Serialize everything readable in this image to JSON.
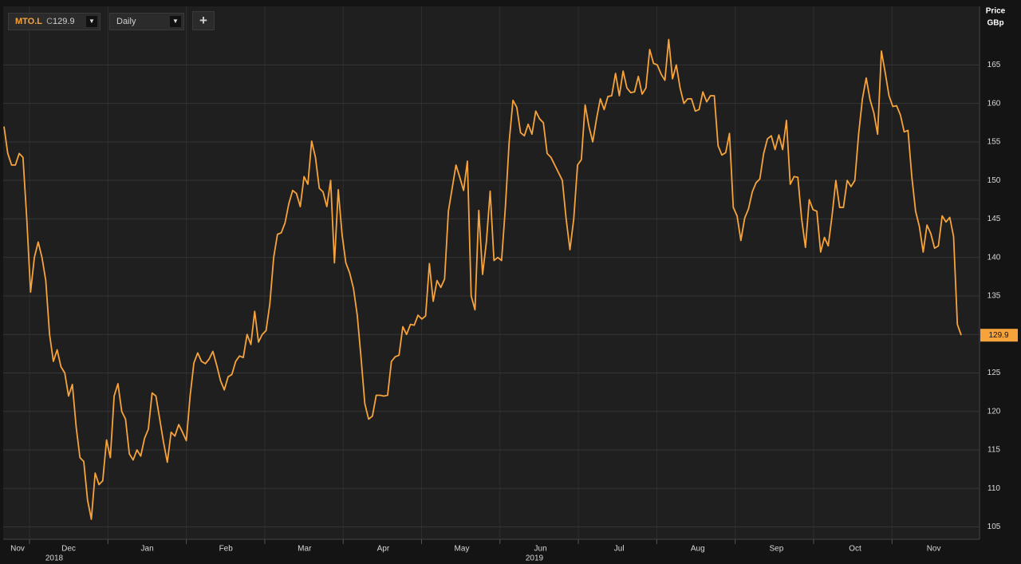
{
  "chart_data": {
    "type": "line",
    "ticker": "MTO.L",
    "last_label": "C",
    "last_value": 129.9,
    "interval": "Daily",
    "add_button": "+",
    "y_label": "Price",
    "y_unit": "GBp",
    "month_labels": [
      "Nov",
      "Dec",
      "Jan",
      "Feb",
      "Mar",
      "Apr",
      "May",
      "Jun",
      "Jul",
      "Aug",
      "Sep",
      "Oct",
      "Nov"
    ],
    "year_labels": [
      "2018",
      "2019"
    ],
    "ylim": [
      103.4,
      172.6
    ],
    "yticks": [
      105,
      110,
      115,
      120,
      125,
      130,
      135,
      140,
      145,
      150,
      155,
      160,
      165
    ],
    "grid": true,
    "series": [
      {
        "name": "MTO.L",
        "color": "#f7a33c",
        "values": [
          157,
          153.5,
          152,
          152,
          153.5,
          153,
          145,
          135.5,
          140,
          142,
          140,
          137,
          130,
          126.5,
          128,
          125.8,
          125,
          122,
          123.5,
          118,
          114,
          113.5,
          108.5,
          106,
          112,
          110.5,
          111,
          116.3,
          114,
          122,
          123.6,
          120,
          119,
          114.5,
          113.7,
          115,
          114.2,
          116.5,
          117.7,
          122.4,
          122,
          119,
          116,
          113.4,
          117.3,
          116.8,
          118.3,
          117.3,
          116.2,
          122,
          126.3,
          127.6,
          126.5,
          126.2,
          126.8,
          127.8,
          126,
          124,
          122.8,
          124.5,
          124.8,
          126.5,
          127.2,
          127,
          130,
          128.7,
          133,
          129,
          130,
          130.5,
          134,
          140,
          143,
          143.2,
          144.5,
          147,
          148.7,
          148.3,
          146.6,
          150.5,
          149.5,
          155.1,
          153,
          149,
          148.5,
          146.6,
          150,
          139.3,
          148.8,
          143,
          139.3,
          138,
          136,
          132.5,
          127,
          121,
          119,
          119.4,
          122.1,
          122.1,
          122,
          122.1,
          126.5,
          127.1,
          127.3,
          131,
          130,
          131.3,
          131.2,
          132.5,
          132,
          132.4,
          139.2,
          134.3,
          137,
          136.1,
          137.2,
          146,
          149,
          152,
          150.4,
          148.7,
          152.5,
          135,
          133.2,
          146.1,
          137.8,
          142,
          148.6,
          139.6,
          140,
          139.6,
          146.5,
          155,
          160.4,
          159.5,
          156.2,
          155.8,
          157.3,
          156,
          159,
          158,
          157.5,
          153.5,
          153,
          152,
          151,
          150,
          145,
          141,
          145,
          152,
          152.7,
          159.8,
          157,
          155,
          158,
          160.6,
          159.2,
          160.9,
          161,
          163.9,
          161,
          164.2,
          162,
          161.4,
          161.5,
          163.5,
          161.2,
          162,
          167,
          165.2,
          165,
          163.8,
          163,
          168.3,
          163.2,
          165,
          162,
          160,
          160.6,
          160.6,
          159,
          159.2,
          161.5,
          160.2,
          161,
          161,
          154.5,
          153.3,
          153.6,
          156.1,
          146.5,
          145.4,
          142.2,
          145.1,
          146.3,
          148.5,
          149.7,
          150.2,
          153.5,
          155.4,
          155.8,
          154,
          155.9,
          154,
          157.8,
          149.5,
          150.5,
          150.4,
          145,
          141.3,
          147.5,
          146.2,
          146,
          140.7,
          142.6,
          141.5,
          145.4,
          150,
          146.5,
          146.5,
          150,
          149.2,
          150,
          156,
          160.6,
          163.3,
          160.5,
          158.8,
          156,
          166.8,
          164,
          161,
          159.6,
          159.7,
          158.5,
          156.3,
          156.5,
          150.5,
          146,
          144,
          140.7,
          144.2,
          143.1,
          141.2,
          141.5,
          145.4,
          144.6,
          145.2,
          142.7,
          131.3,
          129.9
        ]
      }
    ]
  }
}
